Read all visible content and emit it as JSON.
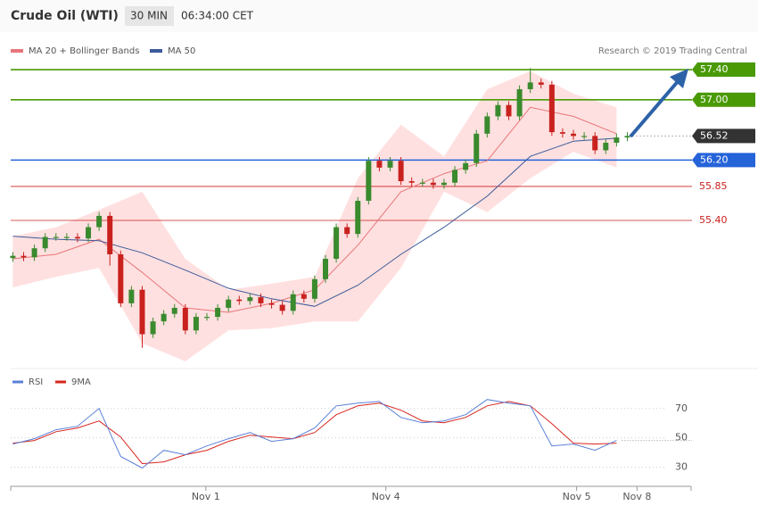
{
  "chart_data": [
    {
      "type": "candlestick",
      "title": "Crude Oil (WTI)",
      "interval": "30 MIN",
      "time": "06:34:00 CET",
      "source": "Research © 2019 Trading Central",
      "up_color": "#3a8a2e",
      "down_color": "#c8211e",
      "xlim": [
        -0.2,
        63
      ],
      "ylim": [
        53.47,
        57.85
      ],
      "open": [
        54.9,
        54.93,
        54.91,
        55.03,
        55.18,
        55.18,
        55.18,
        55.16,
        55.31,
        55.46,
        54.95,
        54.3,
        54.48,
        53.89,
        54.06,
        54.16,
        54.24,
        53.94,
        54.12,
        54.12,
        54.24,
        54.35,
        54.33,
        54.38,
        54.3,
        54.28,
        54.2,
        54.42,
        54.36,
        54.62,
        54.89,
        55.31,
        55.22,
        55.66,
        56.19,
        56.1,
        56.19,
        55.92,
        55.9,
        55.9,
        55.87,
        55.9,
        56.07,
        56.16,
        56.55,
        56.78,
        56.93,
        56.78,
        57.14,
        57.23,
        57.2,
        56.57,
        56.55,
        56.52,
        56.52,
        56.33,
        56.43,
        56.5
      ],
      "high": [
        54.98,
        54.98,
        55.08,
        55.23,
        55.23,
        55.23,
        55.23,
        55.36,
        55.51,
        55.51,
        55.0,
        54.53,
        54.53,
        54.11,
        54.21,
        54.29,
        54.29,
        54.17,
        54.17,
        54.29,
        54.4,
        54.4,
        54.43,
        54.43,
        54.35,
        54.33,
        54.47,
        54.47,
        54.67,
        54.94,
        55.36,
        55.36,
        55.71,
        56.24,
        56.24,
        56.24,
        56.24,
        55.97,
        55.95,
        55.95,
        55.95,
        56.12,
        56.21,
        56.6,
        56.83,
        56.98,
        56.98,
        57.19,
        57.42,
        57.28,
        57.25,
        56.62,
        56.6,
        56.57,
        56.57,
        56.48,
        56.55,
        56.57
      ],
      "low": [
        54.85,
        54.86,
        54.86,
        54.98,
        55.13,
        55.13,
        55.11,
        55.11,
        55.26,
        54.8,
        54.25,
        54.25,
        53.71,
        53.84,
        54.01,
        54.11,
        53.89,
        53.89,
        54.07,
        54.07,
        54.19,
        54.28,
        54.28,
        54.25,
        54.23,
        54.15,
        54.15,
        54.31,
        54.31,
        54.57,
        54.84,
        55.17,
        55.17,
        55.61,
        56.05,
        56.05,
        55.87,
        55.85,
        55.85,
        55.82,
        55.82,
        55.85,
        56.02,
        56.11,
        56.5,
        56.73,
        56.73,
        56.73,
        57.09,
        57.15,
        56.52,
        56.5,
        56.47,
        56.47,
        56.28,
        56.28,
        56.38,
        56.45
      ],
      "close": [
        54.93,
        54.91,
        55.03,
        55.18,
        55.18,
        55.18,
        55.16,
        55.31,
        55.46,
        54.95,
        54.3,
        54.48,
        53.89,
        54.06,
        54.16,
        54.24,
        53.94,
        54.12,
        54.12,
        54.24,
        54.35,
        54.33,
        54.38,
        54.3,
        54.28,
        54.2,
        54.42,
        54.36,
        54.62,
        54.89,
        55.31,
        55.22,
        55.66,
        56.19,
        56.1,
        56.19,
        55.92,
        55.9,
        55.9,
        55.87,
        55.9,
        56.07,
        56.16,
        56.55,
        56.78,
        56.93,
        56.78,
        57.14,
        57.23,
        57.2,
        56.57,
        56.55,
        56.52,
        56.52,
        56.33,
        56.43,
        56.5,
        56.52
      ],
      "series": [
        {
          "name": "MA 20 + Bollinger Bands",
          "color": "#e8767a",
          "band_color": "#ffe0e0",
          "x": [
            0,
            4,
            8,
            12,
            16,
            20,
            24,
            28,
            32,
            36,
            40,
            44,
            48,
            52,
            56
          ],
          "values": [
            54.89,
            54.95,
            55.15,
            54.71,
            54.24,
            54.18,
            54.3,
            54.48,
            55.07,
            55.78,
            56.02,
            56.19,
            56.9,
            56.78,
            56.55
          ],
          "upper": [
            55.19,
            55.31,
            55.54,
            55.78,
            54.89,
            54.48,
            54.56,
            54.65,
            55.96,
            56.67,
            56.25,
            57.14,
            57.38,
            57.08,
            56.9
          ],
          "lower": [
            54.51,
            54.65,
            54.77,
            53.77,
            53.53,
            53.94,
            53.97,
            54.06,
            54.06,
            54.77,
            55.78,
            55.51,
            55.96,
            56.31,
            56.1
          ]
        },
        {
          "name": "MA 50",
          "color": "#3b5b9a",
          "x": [
            0,
            4,
            8,
            12,
            16,
            20,
            24,
            28,
            32,
            36,
            40,
            44,
            48,
            52,
            56
          ],
          "values": [
            55.19,
            55.15,
            55.13,
            54.97,
            54.74,
            54.5,
            54.36,
            54.26,
            54.54,
            54.95,
            55.31,
            55.72,
            56.25,
            56.45,
            56.49
          ]
        }
      ],
      "levels": [
        {
          "value": 57.4,
          "label": "57.40",
          "color": "#4a9a06",
          "style": "line-box"
        },
        {
          "value": 57.0,
          "label": "57.00",
          "color": "#4a9a06",
          "style": "line-box"
        },
        {
          "value": 56.52,
          "label": "56.52",
          "color": "#333333",
          "style": "dotted-box"
        },
        {
          "value": 56.2,
          "label": "56.20",
          "color": "#2563d9",
          "style": "line-box"
        },
        {
          "value": 55.85,
          "label": "55.85",
          "color": "#c8211e",
          "style": "line-text"
        },
        {
          "value": 55.4,
          "label": "55.40",
          "color": "#c8211e",
          "style": "line-text"
        }
      ]
    },
    {
      "type": "line",
      "xlim": [
        -0.2,
        63
      ],
      "ylim": [
        20,
        96
      ],
      "yticks": [
        30,
        50,
        70
      ],
      "grid": true,
      "xticks": [
        {
          "value": 17.9,
          "label": "Nov 1"
        },
        {
          "value": 34.6,
          "label": "Nov 4"
        },
        {
          "value": 52.3,
          "label": "Nov 5"
        },
        {
          "value": 57.9,
          "label": "Nov 8"
        }
      ],
      "series": [
        {
          "name": "RSI",
          "color": "#5b80d8",
          "x": [
            0,
            2,
            4,
            6,
            8,
            10,
            12,
            14,
            16,
            18,
            20,
            22,
            24,
            26,
            28,
            30,
            32,
            34,
            36,
            38,
            40,
            42,
            44,
            46,
            48,
            50,
            52,
            54,
            56
          ],
          "values": [
            45.8,
            49.4,
            55.5,
            57.9,
            70.0,
            37.3,
            29.4,
            41.5,
            38.5,
            44.5,
            49.4,
            53.6,
            47.6,
            49.4,
            56.7,
            71.8,
            73.6,
            74.8,
            63.9,
            60.3,
            61.5,
            65.8,
            76.1,
            73.6,
            71.8,
            44.5,
            45.8,
            41.5,
            48.2
          ]
        },
        {
          "name": "9MA",
          "color": "#d8261f",
          "x": [
            0,
            2,
            4,
            6,
            8,
            10,
            12,
            14,
            16,
            18,
            20,
            22,
            24,
            26,
            28,
            30,
            32,
            34,
            36,
            38,
            40,
            42,
            44,
            46,
            48,
            50,
            52,
            54,
            56
          ],
          "values": [
            46.4,
            48.2,
            54.2,
            56.7,
            61.5,
            50.6,
            32.4,
            33.6,
            38.5,
            41.5,
            47.6,
            51.8,
            50.6,
            49.4,
            53.6,
            65.8,
            71.8,
            73.6,
            68.8,
            61.5,
            60.3,
            63.9,
            71.8,
            74.8,
            71.8,
            59.7,
            46.4,
            45.8,
            46.4
          ]
        }
      ]
    }
  ]
}
